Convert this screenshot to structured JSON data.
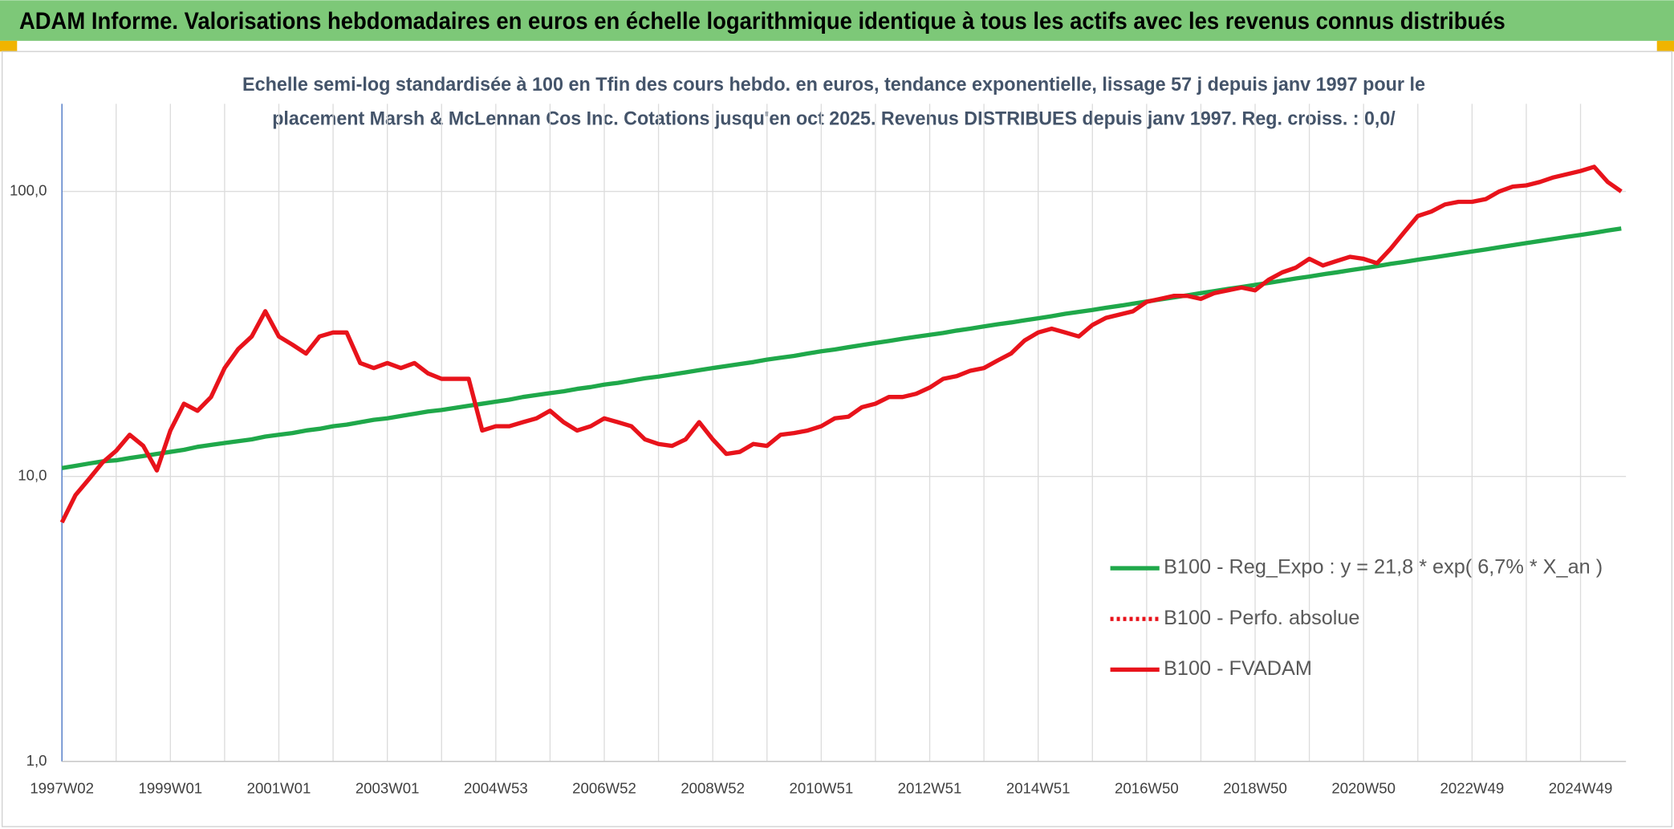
{
  "header": {
    "title": "ADAM Informe. Valorisations hebdomadaires en euros en échelle logarithmique identique à tous les actifs avec les revenus connus distribués"
  },
  "chart_data": {
    "type": "line",
    "subtitle": [
      "Echelle semi-log standardisée à 100 en Tfin des cours hebdo. en euros, tendance exponentielle, lissage 57 j depuis janv 1997 pour le",
      "placement Marsh & McLennan Cos Inc. Cotations jusqu'en oct 2025. Revenus DISTRIBUES depuis janv 1997. Reg. croiss. : 0,0/"
    ],
    "log_scale": true,
    "grid": true,
    "legend": "right",
    "ylim": [
      1,
      203
    ],
    "yticks": [
      {
        "value": 1,
        "label": "1,0"
      },
      {
        "value": 10,
        "label": "10,0"
      },
      {
        "value": 100,
        "label": "100,0"
      }
    ],
    "categories": [
      "1997W02",
      null,
      null,
      null,
      null,
      null,
      null,
      null,
      "1999W01",
      null,
      null,
      null,
      null,
      null,
      null,
      null,
      "2001W01",
      null,
      null,
      null,
      null,
      null,
      null,
      null,
      "2003W01",
      null,
      null,
      null,
      null,
      null,
      null,
      null,
      "2004W53",
      null,
      null,
      null,
      null,
      null,
      null,
      null,
      "2006W52",
      null,
      null,
      null,
      null,
      null,
      null,
      null,
      "2008W52",
      null,
      null,
      null,
      null,
      null,
      null,
      null,
      "2010W51",
      null,
      null,
      null,
      null,
      null,
      null,
      null,
      "2012W51",
      null,
      null,
      null,
      null,
      null,
      null,
      null,
      "2014W51",
      null,
      null,
      null,
      null,
      null,
      null,
      null,
      "2016W50",
      null,
      null,
      null,
      null,
      null,
      null,
      null,
      "2018W50",
      null,
      null,
      null,
      null,
      null,
      null,
      null,
      "2020W50",
      null,
      null,
      null,
      null,
      null,
      null,
      null,
      "2022W49",
      null,
      null,
      null,
      null,
      null,
      null,
      null,
      "2024W49",
      null,
      null,
      null
    ],
    "series": [
      {
        "name": "B100 - Reg_Expo : y = 21,8 * exp( 6,7% *  X_an )",
        "color": "#1fa84a",
        "dash": "solid",
        "values": [
          10.7,
          10.9,
          11.1,
          11.3,
          11.4,
          11.6,
          11.8,
          12.0,
          12.2,
          12.4,
          12.7,
          12.9,
          13.1,
          13.3,
          13.5,
          13.8,
          14.0,
          14.2,
          14.5,
          14.7,
          15.0,
          15.2,
          15.5,
          15.8,
          16.0,
          16.3,
          16.6,
          16.9,
          17.1,
          17.4,
          17.7,
          18.0,
          18.3,
          18.6,
          19.0,
          19.3,
          19.6,
          19.9,
          20.3,
          20.6,
          21.0,
          21.3,
          21.7,
          22.1,
          22.4,
          22.8,
          23.2,
          23.6,
          24.0,
          24.4,
          24.8,
          25.2,
          25.7,
          26.1,
          26.5,
          27.0,
          27.5,
          27.9,
          28.4,
          28.9,
          29.4,
          29.9,
          30.4,
          30.9,
          31.4,
          31.9,
          32.5,
          33.0,
          33.6,
          34.2,
          34.7,
          35.3,
          35.9,
          36.5,
          37.2,
          37.8,
          38.4,
          39.1,
          39.7,
          40.4,
          41.1,
          41.8,
          42.5,
          43.2,
          44.0,
          44.7,
          45.5,
          46.2,
          47.0,
          47.8,
          48.6,
          49.5,
          50.3,
          51.2,
          52.0,
          52.9,
          53.8,
          54.7,
          55.7,
          56.6,
          57.6,
          58.5,
          59.5,
          60.5,
          61.6,
          62.6,
          63.7,
          64.8,
          65.9,
          67.0,
          68.1,
          69.3,
          70.4,
          71.6,
          72.9,
          74.1
        ]
      },
      {
        "name": "B100 - Perfo. absolue",
        "color": "#e8131b",
        "dash": "dotted",
        "values": [
          null,
          null,
          null,
          null,
          null,
          null,
          null,
          null,
          null,
          null,
          null,
          null,
          null,
          null,
          null,
          null,
          null,
          null,
          null,
          null,
          null,
          null,
          null,
          null,
          null,
          null,
          null,
          null,
          null,
          null,
          null,
          null,
          null,
          null,
          null,
          null,
          null,
          null,
          null,
          null,
          null,
          null,
          null,
          null,
          null,
          null,
          null,
          null,
          null,
          null,
          null,
          null,
          null,
          null,
          null,
          null,
          null,
          null,
          null,
          null,
          null,
          null,
          null,
          null,
          null,
          null,
          null,
          null,
          null,
          null,
          null,
          null,
          null,
          null,
          null,
          null,
          null,
          null,
          null,
          null,
          null,
          null,
          null,
          null,
          null,
          null,
          null,
          null,
          null,
          null,
          null,
          null,
          null,
          null,
          null,
          null,
          null,
          null,
          null,
          null,
          null,
          null,
          null,
          null,
          null,
          null,
          null,
          null,
          null,
          null,
          null,
          null,
          null,
          null,
          null,
          null
        ]
      },
      {
        "name": "B100 - FVADAM",
        "color": "#e8131b",
        "dash": "solid",
        "values": [
          6.9,
          8.6,
          9.8,
          11.2,
          12.3,
          14.0,
          12.8,
          10.5,
          14.5,
          18,
          17,
          19,
          24,
          28,
          31,
          38,
          31,
          29,
          27,
          31,
          32,
          32,
          25,
          24,
          25,
          24,
          25,
          23,
          22,
          22,
          22,
          14.5,
          15,
          15,
          15.5,
          16,
          17,
          15.5,
          14.5,
          15,
          16,
          15.5,
          15,
          13.5,
          13,
          12.8,
          13.5,
          15.5,
          13.5,
          12,
          12.2,
          13,
          12.8,
          14,
          14.2,
          14.5,
          15,
          16,
          16.2,
          17.5,
          18,
          19,
          19,
          19.5,
          20.5,
          22,
          22.5,
          23.5,
          24,
          25.5,
          27,
          30,
          32,
          33,
          32,
          31,
          34,
          36,
          37,
          38,
          41,
          42,
          43,
          43,
          42,
          44,
          45,
          46,
          45,
          49,
          52,
          54,
          58,
          55,
          57,
          59,
          58,
          56,
          63,
          72,
          82,
          85,
          90,
          92,
          92,
          94,
          100,
          104,
          105,
          108,
          112,
          115,
          118,
          122,
          108,
          100
        ]
      }
    ]
  }
}
